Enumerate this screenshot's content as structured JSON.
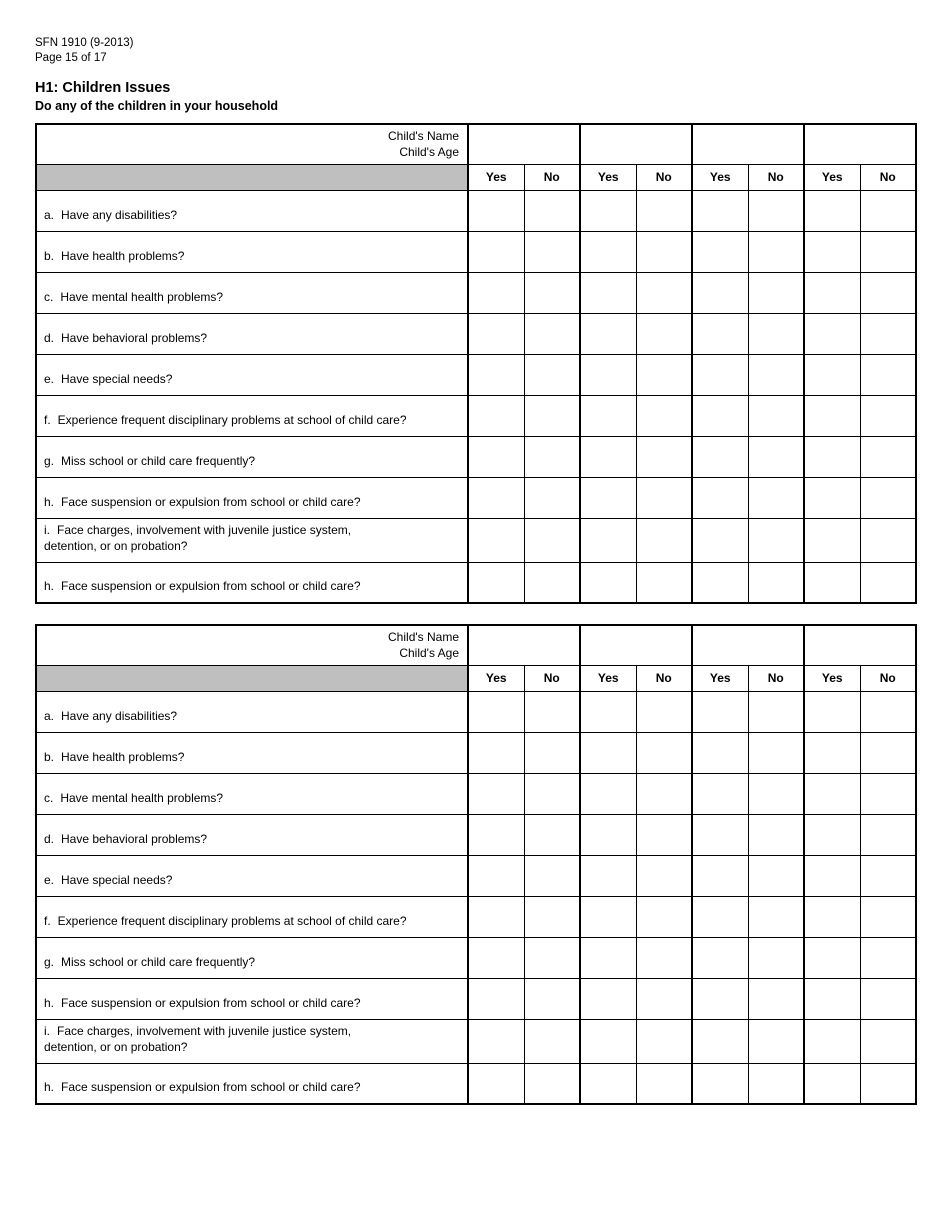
{
  "page": {
    "form_number": "SFN 1910 (9-2013)",
    "page_indicator": "Page 15 of 17",
    "section_title": "H1: Children Issues",
    "section_subtitle": "Do any of the children in your household"
  },
  "table": {
    "corner_header_lines": [
      "Child's Name",
      "Child's Age"
    ],
    "answer_headers": {
      "yes": "Yes",
      "no": "No"
    },
    "child_column_count": 4,
    "instance_count": 2,
    "header_fill_color": "#bfbfbf",
    "border_color": "#000000",
    "questions": [
      {
        "letter": "a.",
        "text": "Have any disabilities?"
      },
      {
        "letter": "b.",
        "text": "Have health problems?"
      },
      {
        "letter": "c.",
        "text": "Have mental health problems?"
      },
      {
        "letter": "d.",
        "text": "Have behavioral problems?"
      },
      {
        "letter": "e.",
        "text": "Have special needs?"
      },
      {
        "letter": "f.",
        "text": "Experience frequent disciplinary problems at school of child care?"
      },
      {
        "letter": "g.",
        "text": "Miss school or child care frequently?"
      },
      {
        "letter": "h.",
        "text": "Face suspension or expulsion from school or child care?"
      },
      {
        "letter": "i.",
        "text": "Face charges, involvement with juvenile justice system,\ndetention, or on probation?"
      },
      {
        "letter": "h.",
        "text": "Face suspension or expulsion from school or child care?"
      }
    ]
  }
}
